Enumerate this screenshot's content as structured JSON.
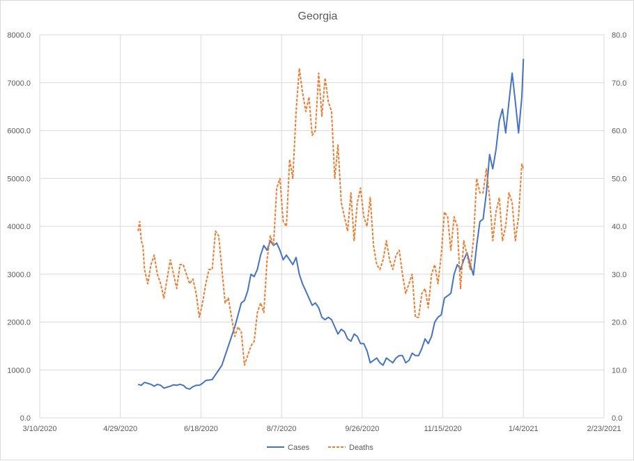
{
  "chart_data": {
    "type": "line",
    "title": "Georgia",
    "xlabel": "",
    "ylabel": "",
    "x_axis": {
      "type": "date",
      "ticks": [
        "3/10/2020",
        "4/29/2020",
        "6/18/2020",
        "8/7/2020",
        "9/26/2020",
        "11/15/2020",
        "1/4/2021",
        "2/23/2021"
      ],
      "range": [
        "2020-03-10",
        "2021-02-23"
      ]
    },
    "y_axis_left": {
      "range": [
        0,
        8000
      ],
      "ticks": [
        "0.0",
        "1000.0",
        "2000.0",
        "3000.0",
        "4000.0",
        "5000.0",
        "6000.0",
        "7000.0",
        "8000.0"
      ]
    },
    "y_axis_right": {
      "range": [
        0,
        80
      ],
      "ticks": [
        "0.0",
        "10.0",
        "20.0",
        "30.0",
        "40.0",
        "50.0",
        "60.0",
        "70.0",
        "80.0"
      ]
    },
    "grid": true,
    "legend_position": "bottom",
    "series": [
      {
        "name": "Cases",
        "axis": "left",
        "color": "#4472c4",
        "style": "solid",
        "points": [
          [
            "2020-05-10",
            700
          ],
          [
            "2020-05-12",
            680
          ],
          [
            "2020-05-14",
            740
          ],
          [
            "2020-05-16",
            720
          ],
          [
            "2020-05-18",
            700
          ],
          [
            "2020-05-20",
            660
          ],
          [
            "2020-05-22",
            700
          ],
          [
            "2020-05-24",
            680
          ],
          [
            "2020-05-26",
            620
          ],
          [
            "2020-05-28",
            640
          ],
          [
            "2020-05-30",
            660
          ],
          [
            "2020-06-01",
            690
          ],
          [
            "2020-06-03",
            680
          ],
          [
            "2020-06-05",
            700
          ],
          [
            "2020-06-07",
            680
          ],
          [
            "2020-06-09",
            620
          ],
          [
            "2020-06-11",
            600
          ],
          [
            "2020-06-13",
            650
          ],
          [
            "2020-06-15",
            680
          ],
          [
            "2020-06-17",
            680
          ],
          [
            "2020-06-19",
            720
          ],
          [
            "2020-06-21",
            780
          ],
          [
            "2020-06-23",
            790
          ],
          [
            "2020-06-25",
            800
          ],
          [
            "2020-06-27",
            900
          ],
          [
            "2020-06-29",
            1000
          ],
          [
            "2020-07-01",
            1100
          ],
          [
            "2020-07-03",
            1300
          ],
          [
            "2020-07-05",
            1500
          ],
          [
            "2020-07-07",
            1700
          ],
          [
            "2020-07-09",
            1900
          ],
          [
            "2020-07-11",
            2150
          ],
          [
            "2020-07-13",
            2400
          ],
          [
            "2020-07-15",
            2450
          ],
          [
            "2020-07-17",
            2650
          ],
          [
            "2020-07-19",
            3000
          ],
          [
            "2020-07-21",
            2950
          ],
          [
            "2020-07-23",
            3100
          ],
          [
            "2020-07-25",
            3400
          ],
          [
            "2020-07-27",
            3600
          ],
          [
            "2020-07-29",
            3500
          ],
          [
            "2020-07-31",
            3700
          ],
          [
            "2020-08-02",
            3600
          ],
          [
            "2020-08-04",
            3650
          ],
          [
            "2020-08-06",
            3500
          ],
          [
            "2020-08-08",
            3300
          ],
          [
            "2020-08-10",
            3400
          ],
          [
            "2020-08-12",
            3300
          ],
          [
            "2020-08-14",
            3200
          ],
          [
            "2020-08-16",
            3350
          ],
          [
            "2020-08-18",
            3000
          ],
          [
            "2020-08-20",
            2800
          ],
          [
            "2020-08-22",
            2650
          ],
          [
            "2020-08-24",
            2500
          ],
          [
            "2020-08-26",
            2350
          ],
          [
            "2020-08-28",
            2400
          ],
          [
            "2020-08-30",
            2300
          ],
          [
            "2020-09-01",
            2100
          ],
          [
            "2020-09-03",
            2050
          ],
          [
            "2020-09-05",
            2100
          ],
          [
            "2020-09-07",
            2050
          ],
          [
            "2020-09-09",
            1900
          ],
          [
            "2020-09-11",
            1750
          ],
          [
            "2020-09-13",
            1850
          ],
          [
            "2020-09-15",
            1800
          ],
          [
            "2020-09-17",
            1650
          ],
          [
            "2020-09-19",
            1600
          ],
          [
            "2020-09-21",
            1750
          ],
          [
            "2020-09-23",
            1700
          ],
          [
            "2020-09-25",
            1550
          ],
          [
            "2020-09-27",
            1550
          ],
          [
            "2020-09-29",
            1400
          ],
          [
            "2020-10-01",
            1150
          ],
          [
            "2020-10-03",
            1200
          ],
          [
            "2020-10-05",
            1250
          ],
          [
            "2020-10-07",
            1150
          ],
          [
            "2020-10-09",
            1100
          ],
          [
            "2020-10-11",
            1250
          ],
          [
            "2020-10-13",
            1200
          ],
          [
            "2020-10-15",
            1150
          ],
          [
            "2020-10-17",
            1250
          ],
          [
            "2020-10-19",
            1300
          ],
          [
            "2020-10-21",
            1300
          ],
          [
            "2020-10-23",
            1150
          ],
          [
            "2020-10-25",
            1200
          ],
          [
            "2020-10-27",
            1350
          ],
          [
            "2020-10-29",
            1300
          ],
          [
            "2020-10-31",
            1300
          ],
          [
            "2020-11-02",
            1450
          ],
          [
            "2020-11-04",
            1650
          ],
          [
            "2020-11-06",
            1550
          ],
          [
            "2020-11-08",
            1700
          ],
          [
            "2020-11-10",
            2000
          ],
          [
            "2020-11-12",
            2100
          ],
          [
            "2020-11-14",
            2150
          ],
          [
            "2020-11-16",
            2500
          ],
          [
            "2020-11-18",
            2550
          ],
          [
            "2020-11-20",
            2600
          ],
          [
            "2020-11-22",
            3000
          ],
          [
            "2020-11-24",
            3200
          ],
          [
            "2020-11-26",
            3100
          ],
          [
            "2020-11-28",
            3300
          ],
          [
            "2020-11-30",
            3450
          ],
          [
            "2020-12-02",
            3200
          ],
          [
            "2020-12-04",
            2980
          ],
          [
            "2020-12-06",
            3600
          ],
          [
            "2020-12-08",
            4100
          ],
          [
            "2020-12-10",
            4150
          ],
          [
            "2020-12-12",
            4700
          ],
          [
            "2020-12-14",
            5500
          ],
          [
            "2020-12-16",
            5200
          ],
          [
            "2020-12-18",
            5600
          ],
          [
            "2020-12-20",
            6200
          ],
          [
            "2020-12-22",
            6450
          ],
          [
            "2020-12-24",
            5950
          ],
          [
            "2020-12-26",
            6600
          ],
          [
            "2020-12-28",
            7200
          ],
          [
            "2020-12-30",
            6600
          ],
          [
            "2021-01-01",
            5950
          ],
          [
            "2021-01-03",
            6700
          ],
          [
            "2021-01-04",
            7500
          ]
        ]
      },
      {
        "name": "Deaths",
        "axis": "right",
        "color": "#ed7d31",
        "style": "dashed",
        "points": [
          [
            "2020-05-10",
            39
          ],
          [
            "2020-05-11",
            41
          ],
          [
            "2020-05-12",
            37
          ],
          [
            "2020-05-13",
            36
          ],
          [
            "2020-05-14",
            31
          ],
          [
            "2020-05-16",
            28
          ],
          [
            "2020-05-18",
            32
          ],
          [
            "2020-05-20",
            34
          ],
          [
            "2020-05-22",
            30
          ],
          [
            "2020-05-24",
            28
          ],
          [
            "2020-05-26",
            25
          ],
          [
            "2020-05-28",
            29
          ],
          [
            "2020-05-30",
            33
          ],
          [
            "2020-06-01",
            30
          ],
          [
            "2020-06-03",
            27
          ],
          [
            "2020-06-05",
            32
          ],
          [
            "2020-06-07",
            32
          ],
          [
            "2020-06-09",
            30
          ],
          [
            "2020-06-11",
            28
          ],
          [
            "2020-06-13",
            29
          ],
          [
            "2020-06-15",
            26
          ],
          [
            "2020-06-17",
            21
          ],
          [
            "2020-06-19",
            24
          ],
          [
            "2020-06-21",
            28
          ],
          [
            "2020-06-23",
            31
          ],
          [
            "2020-06-25",
            31
          ],
          [
            "2020-06-27",
            39
          ],
          [
            "2020-06-29",
            38
          ],
          [
            "2020-07-01",
            31
          ],
          [
            "2020-07-03",
            24
          ],
          [
            "2020-07-05",
            25
          ],
          [
            "2020-07-07",
            21
          ],
          [
            "2020-07-09",
            17
          ],
          [
            "2020-07-11",
            19
          ],
          [
            "2020-07-13",
            18
          ],
          [
            "2020-07-15",
            11
          ],
          [
            "2020-07-17",
            13
          ],
          [
            "2020-07-19",
            15
          ],
          [
            "2020-07-21",
            16
          ],
          [
            "2020-07-23",
            22
          ],
          [
            "2020-07-25",
            24
          ],
          [
            "2020-07-27",
            22
          ],
          [
            "2020-07-29",
            33
          ],
          [
            "2020-07-31",
            38
          ],
          [
            "2020-08-02",
            36
          ],
          [
            "2020-08-04",
            48
          ],
          [
            "2020-08-06",
            50
          ],
          [
            "2020-08-08",
            41
          ],
          [
            "2020-08-10",
            40
          ],
          [
            "2020-08-12",
            54
          ],
          [
            "2020-08-14",
            50
          ],
          [
            "2020-08-16",
            64
          ],
          [
            "2020-08-18",
            73
          ],
          [
            "2020-08-20",
            68
          ],
          [
            "2020-08-22",
            64
          ],
          [
            "2020-08-24",
            67
          ],
          [
            "2020-08-26",
            59
          ],
          [
            "2020-08-28",
            60
          ],
          [
            "2020-08-30",
            72
          ],
          [
            "2020-09-01",
            63
          ],
          [
            "2020-09-03",
            71
          ],
          [
            "2020-09-05",
            66
          ],
          [
            "2020-09-07",
            64
          ],
          [
            "2020-09-09",
            50
          ],
          [
            "2020-09-11",
            57
          ],
          [
            "2020-09-13",
            45
          ],
          [
            "2020-09-15",
            42
          ],
          [
            "2020-09-17",
            39
          ],
          [
            "2020-09-19",
            47
          ],
          [
            "2020-09-21",
            37
          ],
          [
            "2020-09-23",
            45
          ],
          [
            "2020-09-25",
            48
          ],
          [
            "2020-09-27",
            42
          ],
          [
            "2020-09-29",
            40
          ],
          [
            "2020-10-01",
            46
          ],
          [
            "2020-10-03",
            36
          ],
          [
            "2020-10-05",
            32
          ],
          [
            "2020-10-07",
            31
          ],
          [
            "2020-10-09",
            33
          ],
          [
            "2020-10-11",
            37
          ],
          [
            "2020-10-13",
            33
          ],
          [
            "2020-10-15",
            31
          ],
          [
            "2020-10-17",
            34
          ],
          [
            "2020-10-19",
            35
          ],
          [
            "2020-10-21",
            30
          ],
          [
            "2020-10-23",
            26
          ],
          [
            "2020-10-25",
            28
          ],
          [
            "2020-10-27",
            30
          ],
          [
            "2020-10-29",
            21
          ],
          [
            "2020-10-31",
            21
          ],
          [
            "2020-11-02",
            26
          ],
          [
            "2020-11-04",
            27
          ],
          [
            "2020-11-06",
            23
          ],
          [
            "2020-11-08",
            30
          ],
          [
            "2020-11-10",
            32
          ],
          [
            "2020-11-12",
            28
          ],
          [
            "2020-11-14",
            34
          ],
          [
            "2020-11-16",
            43
          ],
          [
            "2020-11-18",
            42
          ],
          [
            "2020-11-20",
            35
          ],
          [
            "2020-11-22",
            42
          ],
          [
            "2020-11-24",
            40
          ],
          [
            "2020-11-26",
            27
          ],
          [
            "2020-11-28",
            37
          ],
          [
            "2020-11-30",
            34
          ],
          [
            "2020-12-02",
            31
          ],
          [
            "2020-12-04",
            37
          ],
          [
            "2020-12-06",
            50
          ],
          [
            "2020-12-08",
            47
          ],
          [
            "2020-12-10",
            47
          ],
          [
            "2020-12-12",
            52
          ],
          [
            "2020-12-14",
            46
          ],
          [
            "2020-12-16",
            37
          ],
          [
            "2020-12-18",
            43
          ],
          [
            "2020-12-20",
            46
          ],
          [
            "2020-12-22",
            37
          ],
          [
            "2020-12-24",
            40
          ],
          [
            "2020-12-26",
            47
          ],
          [
            "2020-12-28",
            45
          ],
          [
            "2020-12-30",
            37
          ],
          [
            "2021-01-01",
            42
          ],
          [
            "2021-01-03",
            53
          ],
          [
            "2021-01-04",
            52
          ]
        ]
      }
    ]
  }
}
